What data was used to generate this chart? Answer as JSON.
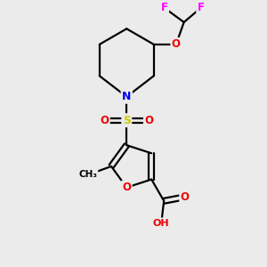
{
  "bg_color": "#ebebeb",
  "atom_colors": {
    "C": "#000000",
    "N": "#0000ee",
    "O": "#ee0000",
    "S": "#cccc00",
    "F": "#ff00ff",
    "H": "#008080"
  },
  "bond_color": "#000000"
}
